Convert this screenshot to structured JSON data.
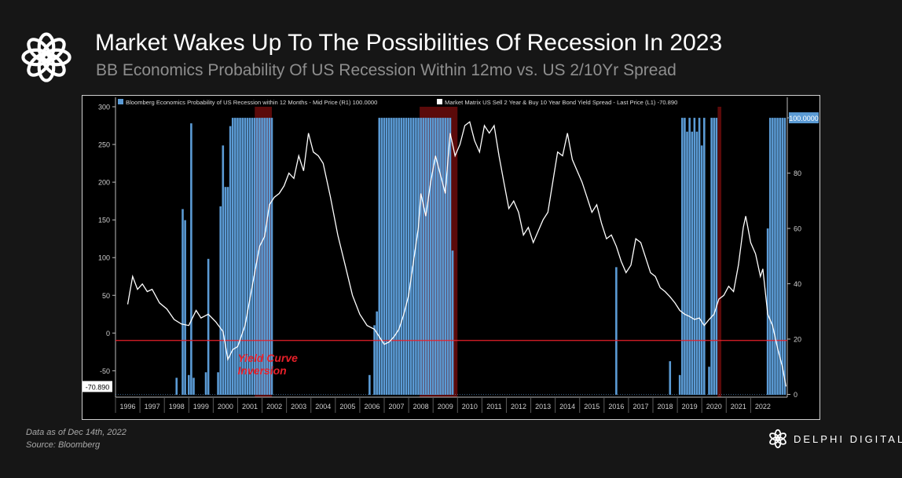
{
  "header": {
    "title": "Market Wakes Up To The Possibilities Of Recession In 2023",
    "subtitle": "BB Economics Probability Of US Recession Within 12mo vs. US 2/10Yr Spread"
  },
  "footer": {
    "data_as_of": "Data as of Dec 14th, 2022",
    "source": "Source: Bloomberg",
    "brand": "DELPHI DIGITAL"
  },
  "icons": {
    "brand_logo": "delphi-flower-icon"
  },
  "chart_data": {
    "type": "bar+line",
    "legend": [
      {
        "label": "Bloomberg Economics Probability of US Recession within 12 Months - Mid Price (R1) 100.0000",
        "color": "#5b9bd5"
      },
      {
        "label": "Market Matrix US Sell 2 Year & Buy 10 Year Bond Yield Spread - Last Price (L1) -70.890",
        "color": "#ffffff"
      }
    ],
    "legend_position": "top-left",
    "x_ticks": [
      "1996",
      "1997",
      "1998",
      "1999",
      "2000",
      "2001",
      "2002",
      "2003",
      "2004",
      "2005",
      "2006",
      "2007",
      "2008",
      "2009",
      "2010",
      "2011",
      "2012",
      "2013",
      "2014",
      "2015",
      "2016",
      "2017",
      "2018",
      "2019",
      "2020",
      "2021",
      "2022"
    ],
    "xlim": [
      1995.5,
      2023.0
    ],
    "left_axis": {
      "ylim": [
        -85,
        300
      ],
      "ticks": [
        300,
        250,
        200,
        150,
        100,
        50,
        0,
        -50
      ]
    },
    "right_axis": {
      "ylim": [
        -1,
        104
      ],
      "ticks": [
        100,
        80,
        60,
        40,
        20,
        0
      ]
    },
    "last_value_labels": {
      "left": "-70.890",
      "right": "100.0000"
    },
    "reference_line": {
      "axis": "right",
      "value": 19.5,
      "color": "#e8202a"
    },
    "annotation": {
      "text": "Yield Curve\nInversion",
      "color": "#e8202a",
      "x": 2000.5,
      "y": -38
    },
    "recession_bands": [
      [
        2001.2,
        2001.9
      ],
      [
        2007.95,
        2009.5
      ],
      [
        2020.15,
        2020.3
      ]
    ],
    "series": [
      {
        "name": "Market Matrix US Sell 2 Year & Buy 10 Year Bond Yield Spread - Last Price (L1) -70.890",
        "axis": "left",
        "color": "#ffffff",
        "points": [
          [
            1996.0,
            38
          ],
          [
            1996.2,
            75
          ],
          [
            1996.4,
            58
          ],
          [
            1996.6,
            65
          ],
          [
            1996.8,
            55
          ],
          [
            1997.0,
            58
          ],
          [
            1997.3,
            40
          ],
          [
            1997.6,
            32
          ],
          [
            1997.9,
            18
          ],
          [
            1998.2,
            12
          ],
          [
            1998.5,
            10
          ],
          [
            1998.8,
            30
          ],
          [
            1999.0,
            20
          ],
          [
            1999.3,
            25
          ],
          [
            1999.6,
            15
          ],
          [
            1999.9,
            2
          ],
          [
            2000.1,
            -35
          ],
          [
            2000.3,
            -22
          ],
          [
            2000.5,
            -18
          ],
          [
            2000.8,
            10
          ],
          [
            2001.0,
            45
          ],
          [
            2001.2,
            80
          ],
          [
            2001.4,
            115
          ],
          [
            2001.6,
            128
          ],
          [
            2001.8,
            170
          ],
          [
            2002.0,
            180
          ],
          [
            2002.2,
            185
          ],
          [
            2002.4,
            195
          ],
          [
            2002.6,
            212
          ],
          [
            2002.8,
            205
          ],
          [
            2003.0,
            235
          ],
          [
            2003.2,
            215
          ],
          [
            2003.4,
            265
          ],
          [
            2003.6,
            240
          ],
          [
            2003.8,
            235
          ],
          [
            2004.0,
            225
          ],
          [
            2004.3,
            180
          ],
          [
            2004.6,
            130
          ],
          [
            2004.9,
            90
          ],
          [
            2005.2,
            50
          ],
          [
            2005.5,
            25
          ],
          [
            2005.8,
            10
          ],
          [
            2006.1,
            5
          ],
          [
            2006.3,
            -5
          ],
          [
            2006.5,
            -15
          ],
          [
            2006.7,
            -12
          ],
          [
            2006.9,
            -5
          ],
          [
            2007.1,
            5
          ],
          [
            2007.3,
            25
          ],
          [
            2007.5,
            50
          ],
          [
            2007.7,
            95
          ],
          [
            2007.9,
            140
          ],
          [
            2008.0,
            185
          ],
          [
            2008.2,
            155
          ],
          [
            2008.4,
            200
          ],
          [
            2008.6,
            235
          ],
          [
            2008.8,
            210
          ],
          [
            2009.0,
            185
          ],
          [
            2009.2,
            265
          ],
          [
            2009.4,
            235
          ],
          [
            2009.6,
            250
          ],
          [
            2009.8,
            275
          ],
          [
            2010.0,
            280
          ],
          [
            2010.2,
            255
          ],
          [
            2010.4,
            240
          ],
          [
            2010.6,
            275
          ],
          [
            2010.8,
            265
          ],
          [
            2011.0,
            275
          ],
          [
            2011.2,
            235
          ],
          [
            2011.4,
            200
          ],
          [
            2011.6,
            165
          ],
          [
            2011.8,
            175
          ],
          [
            2012.0,
            160
          ],
          [
            2012.2,
            130
          ],
          [
            2012.4,
            140
          ],
          [
            2012.6,
            120
          ],
          [
            2012.8,
            135
          ],
          [
            2013.0,
            150
          ],
          [
            2013.2,
            160
          ],
          [
            2013.4,
            200
          ],
          [
            2013.6,
            240
          ],
          [
            2013.8,
            235
          ],
          [
            2014.0,
            265
          ],
          [
            2014.2,
            230
          ],
          [
            2014.4,
            215
          ],
          [
            2014.6,
            200
          ],
          [
            2014.8,
            180
          ],
          [
            2015.0,
            160
          ],
          [
            2015.2,
            170
          ],
          [
            2015.4,
            145
          ],
          [
            2015.6,
            125
          ],
          [
            2015.8,
            130
          ],
          [
            2016.0,
            115
          ],
          [
            2016.2,
            95
          ],
          [
            2016.4,
            80
          ],
          [
            2016.6,
            90
          ],
          [
            2016.8,
            125
          ],
          [
            2017.0,
            120
          ],
          [
            2017.2,
            100
          ],
          [
            2017.4,
            80
          ],
          [
            2017.6,
            75
          ],
          [
            2017.8,
            60
          ],
          [
            2018.0,
            55
          ],
          [
            2018.2,
            48
          ],
          [
            2018.4,
            40
          ],
          [
            2018.6,
            30
          ],
          [
            2018.8,
            25
          ],
          [
            2019.0,
            22
          ],
          [
            2019.2,
            18
          ],
          [
            2019.4,
            20
          ],
          [
            2019.6,
            10
          ],
          [
            2019.8,
            18
          ],
          [
            2020.0,
            25
          ],
          [
            2020.2,
            45
          ],
          [
            2020.4,
            50
          ],
          [
            2020.6,
            62
          ],
          [
            2020.8,
            55
          ],
          [
            2021.0,
            90
          ],
          [
            2021.2,
            140
          ],
          [
            2021.3,
            155
          ],
          [
            2021.5,
            120
          ],
          [
            2021.7,
            105
          ],
          [
            2021.9,
            75
          ],
          [
            2022.0,
            85
          ],
          [
            2022.2,
            25
          ],
          [
            2022.4,
            10
          ],
          [
            2022.6,
            -20
          ],
          [
            2022.8,
            -45
          ],
          [
            2022.95,
            -70.89
          ]
        ]
      },
      {
        "name": "Bloomberg Economics Probability of US Recession within 12 Months - Mid Price (R1) 100.0000",
        "axis": "right",
        "color": "#5b9bd5",
        "points": [
          [
            1998.0,
            6
          ],
          [
            1998.25,
            67
          ],
          [
            1998.35,
            63
          ],
          [
            1998.5,
            7
          ],
          [
            1998.6,
            98
          ],
          [
            1998.7,
            6
          ],
          [
            1999.2,
            8
          ],
          [
            1999.3,
            49
          ],
          [
            1999.7,
            8
          ],
          [
            1999.8,
            68
          ],
          [
            1999.9,
            90
          ],
          [
            2000.0,
            75
          ],
          [
            2000.1,
            75
          ],
          [
            2000.2,
            97
          ],
          [
            2000.3,
            100
          ],
          [
            2000.4,
            100
          ],
          [
            2000.5,
            100
          ],
          [
            2000.6,
            100
          ],
          [
            2000.7,
            100
          ],
          [
            2000.8,
            100
          ],
          [
            2000.9,
            100
          ],
          [
            2001.0,
            100
          ],
          [
            2001.1,
            100
          ],
          [
            2001.2,
            100
          ],
          [
            2001.3,
            100
          ],
          [
            2001.4,
            100
          ],
          [
            2001.5,
            100
          ],
          [
            2001.6,
            100
          ],
          [
            2001.7,
            100
          ],
          [
            2001.8,
            100
          ],
          [
            2001.9,
            100
          ],
          [
            2005.9,
            7
          ],
          [
            2006.1,
            25
          ],
          [
            2006.2,
            30
          ],
          [
            2006.3,
            100
          ],
          [
            2006.4,
            100
          ],
          [
            2006.5,
            100
          ],
          [
            2006.6,
            100
          ],
          [
            2006.7,
            100
          ],
          [
            2006.8,
            100
          ],
          [
            2006.9,
            100
          ],
          [
            2007.0,
            100
          ],
          [
            2007.1,
            100
          ],
          [
            2007.2,
            100
          ],
          [
            2007.3,
            100
          ],
          [
            2007.4,
            100
          ],
          [
            2007.5,
            100
          ],
          [
            2007.6,
            100
          ],
          [
            2007.7,
            100
          ],
          [
            2007.8,
            100
          ],
          [
            2007.9,
            100
          ],
          [
            2008.0,
            100
          ],
          [
            2008.1,
            100
          ],
          [
            2008.2,
            100
          ],
          [
            2008.3,
            100
          ],
          [
            2008.4,
            100
          ],
          [
            2008.5,
            100
          ],
          [
            2008.6,
            100
          ],
          [
            2008.7,
            100
          ],
          [
            2008.8,
            100
          ],
          [
            2008.9,
            100
          ],
          [
            2009.0,
            100
          ],
          [
            2009.1,
            100
          ],
          [
            2009.2,
            100
          ],
          [
            2009.3,
            52
          ],
          [
            2016.0,
            46
          ],
          [
            2018.2,
            12
          ],
          [
            2018.6,
            7
          ],
          [
            2018.7,
            100
          ],
          [
            2018.8,
            100
          ],
          [
            2018.9,
            95
          ],
          [
            2019.0,
            100
          ],
          [
            2019.1,
            95
          ],
          [
            2019.2,
            100
          ],
          [
            2019.3,
            95
          ],
          [
            2019.4,
            100
          ],
          [
            2019.5,
            90
          ],
          [
            2019.6,
            100
          ],
          [
            2019.8,
            10
          ],
          [
            2019.9,
            100
          ],
          [
            2020.0,
            100
          ],
          [
            2020.1,
            100
          ],
          [
            2022.2,
            60
          ],
          [
            2022.3,
            100
          ],
          [
            2022.4,
            100
          ],
          [
            2022.5,
            100
          ],
          [
            2022.6,
            100
          ],
          [
            2022.7,
            100
          ],
          [
            2022.8,
            100
          ],
          [
            2022.9,
            100
          ]
        ]
      }
    ]
  }
}
